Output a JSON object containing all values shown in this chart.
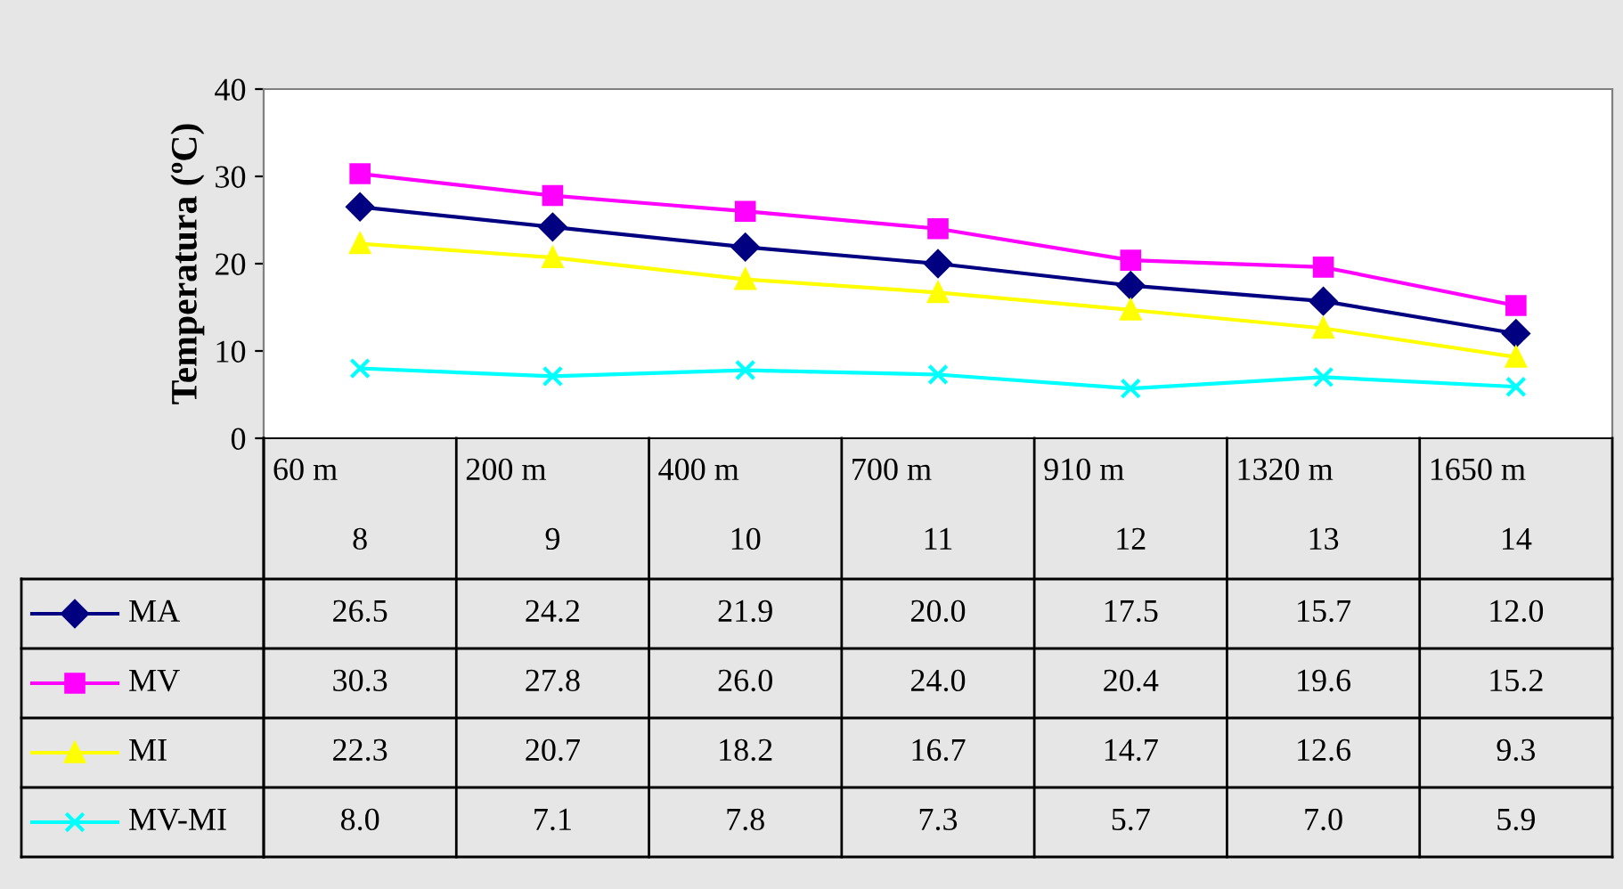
{
  "chart_data": {
    "type": "line",
    "ylabel": "Temperatura (ºC)",
    "categories": [
      "60 m\n8",
      "200 m\n9",
      "400 m\n10",
      "700 m\n11",
      "910 m\n12",
      "1320 m\n13",
      "1650 m\n14"
    ],
    "series": [
      {
        "name": "MA",
        "color": "#000080",
        "marker": "diamond",
        "values": [
          26.5,
          24.2,
          21.9,
          20.0,
          17.5,
          15.7,
          12.0
        ],
        "value_labels": [
          "26.5",
          "24.2",
          "21.9",
          "20.0",
          "17.5",
          "15.7",
          "12.0"
        ]
      },
      {
        "name": "MV",
        "color": "#ff00ff",
        "marker": "square",
        "values": [
          30.3,
          27.8,
          26.0,
          24.0,
          20.4,
          19.6,
          15.2
        ],
        "value_labels": [
          "30.3",
          "27.8",
          "26.0",
          "24.0",
          "20.4",
          "19.6",
          "15.2"
        ]
      },
      {
        "name": "MI",
        "color": "#ffff00",
        "marker": "triangle",
        "values": [
          22.3,
          20.7,
          18.2,
          16.7,
          14.7,
          12.6,
          9.3
        ],
        "value_labels": [
          "22.3",
          "20.7",
          "18.2",
          "16.7",
          "14.7",
          "12.6",
          "9.3"
        ]
      },
      {
        "name": "MV-MI",
        "color": "#00ffff",
        "marker": "cross",
        "values": [
          8.0,
          7.1,
          7.8,
          7.3,
          5.7,
          7.0,
          5.9
        ],
        "value_labels": [
          "8.0",
          "7.1",
          "7.8",
          "7.3",
          "5.7",
          "7.0",
          "5.9"
        ]
      }
    ],
    "ylim": [
      0,
      40
    ],
    "yticks": [
      0,
      10,
      20,
      30,
      40
    ],
    "grid": false,
    "legend": "left"
  }
}
